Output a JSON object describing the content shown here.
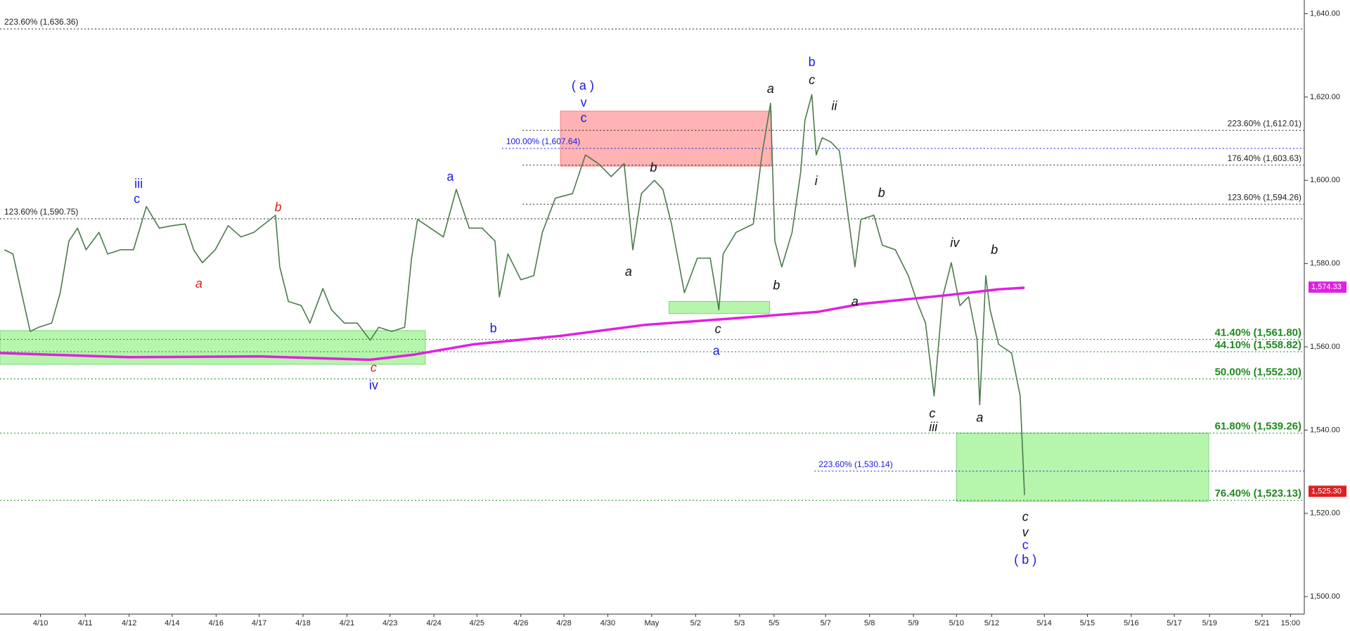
{
  "chart_data": {
    "type": "line",
    "xlim": [
      0,
      151.5
    ],
    "ylim": [
      1495.8,
      1643.3
    ],
    "yticks": [
      {
        "value": 1500,
        "label": "1,500.00"
      },
      {
        "value": 1520,
        "label": "1,520.00"
      },
      {
        "value": 1540,
        "label": "1,540.00"
      },
      {
        "value": 1560,
        "label": "1,560.00"
      },
      {
        "value": 1580,
        "label": "1,580.00"
      },
      {
        "value": 1600,
        "label": "1,600.00"
      },
      {
        "value": 1620,
        "label": "1,620.00"
      },
      {
        "value": 1640,
        "label": "1,640.00"
      }
    ],
    "xticks": [
      {
        "value": 4.7,
        "label": "4/10"
      },
      {
        "value": 9.9,
        "label": "4/11"
      },
      {
        "value": 15.0,
        "label": "4/12"
      },
      {
        "value": 20.0,
        "label": "4/14"
      },
      {
        "value": 25.1,
        "label": "4/16"
      },
      {
        "value": 30.1,
        "label": "4/17"
      },
      {
        "value": 35.2,
        "label": "4/18"
      },
      {
        "value": 40.3,
        "label": "4/21"
      },
      {
        "value": 45.3,
        "label": "4/23"
      },
      {
        "value": 50.4,
        "label": "4/24"
      },
      {
        "value": 55.4,
        "label": "4/25"
      },
      {
        "value": 60.5,
        "label": "4/26"
      },
      {
        "value": 65.5,
        "label": "4/28"
      },
      {
        "value": 70.6,
        "label": "4/30"
      },
      {
        "value": 75.7,
        "label": "May"
      },
      {
        "value": 80.8,
        "label": "5/2"
      },
      {
        "value": 85.9,
        "label": "5/3"
      },
      {
        "value": 89.9,
        "label": "5/5"
      },
      {
        "value": 95.9,
        "label": "5/7"
      },
      {
        "value": 101.0,
        "label": "5/8"
      },
      {
        "value": 106.1,
        "label": "5/9"
      },
      {
        "value": 111.1,
        "label": "5/10"
      },
      {
        "value": 115.2,
        "label": "5/12"
      },
      {
        "value": 121.3,
        "label": "5/14"
      },
      {
        "value": 126.3,
        "label": "5/15"
      },
      {
        "value": 131.4,
        "label": "5/16"
      },
      {
        "value": 136.4,
        "label": "5/17"
      },
      {
        "value": 140.5,
        "label": "5/19"
      },
      {
        "value": 146.6,
        "label": "5/21"
      },
      {
        "value": 149.9,
        "label": "15:00"
      }
    ],
    "series": [
      {
        "color": "#4d7a4d",
        "x": [
          0.5,
          1.5,
          2.5,
          3.5,
          4.5,
          6,
          7,
          8,
          9,
          10,
          11.5,
          12.5,
          14,
          15.5,
          17,
          18.5,
          20,
          21.5,
          22.5,
          23.5,
          25,
          26.5,
          28,
          29.5,
          32,
          32.5,
          33.5,
          35,
          36,
          37.5,
          38.5,
          40,
          41.5,
          43,
          44,
          45.5,
          47,
          47.8,
          48.5,
          50,
          51.5,
          53,
          54.5,
          56,
          57.5,
          58,
          59,
          60.5,
          62,
          63,
          64.5,
          66.5,
          68,
          69.5,
          71,
          72.5,
          73.5,
          74.5,
          76,
          77,
          78,
          79.5,
          81,
          82.5,
          83.5,
          84,
          85.5,
          87.5,
          88.5,
          89.5,
          90,
          90.8,
          92,
          93,
          93.5,
          94.3,
          94.8,
          95.5,
          96.5,
          97.5,
          98.5,
          99.3,
          100,
          101.5,
          102.5,
          104,
          105.5,
          106.5,
          107.5,
          108.5,
          109.5,
          110.5,
          111.5,
          112.5,
          113.5,
          113.8,
          114.5,
          115,
          116,
          117.5,
          118.5,
          119
        ],
        "values": [
          1583.3,
          1582.3,
          1573,
          1563.7,
          1564.7,
          1565.7,
          1573,
          1585.4,
          1588.5,
          1583.3,
          1587.5,
          1582.3,
          1583.3,
          1583.3,
          1593.7,
          1588.5,
          1589.1,
          1589.5,
          1583.3,
          1580.2,
          1583.3,
          1589.1,
          1586.4,
          1587.5,
          1591.6,
          1579.2,
          1570.9,
          1569.9,
          1565.7,
          1574,
          1568.9,
          1565.7,
          1565.7,
          1561.6,
          1564.7,
          1563.7,
          1564.7,
          1581.3,
          1590.6,
          1588.5,
          1586.4,
          1597.8,
          1588.5,
          1588.5,
          1585.4,
          1572,
          1582.3,
          1576.1,
          1577.1,
          1587.5,
          1595.7,
          1596.8,
          1606.1,
          1604,
          1600.9,
          1604,
          1583.3,
          1596.8,
          1600,
          1597.8,
          1589.5,
          1573,
          1581.3,
          1581.3,
          1568.9,
          1582.3,
          1587.5,
          1589.5,
          1606.1,
          1618.5,
          1585.4,
          1579.2,
          1587.5,
          1601.9,
          1614.4,
          1620.6,
          1606.1,
          1610.2,
          1609.2,
          1607.1,
          1591.6,
          1579.2,
          1590.6,
          1591.6,
          1584.4,
          1583.3,
          1577.1,
          1570.9,
          1565.7,
          1548.2,
          1572,
          1580.2,
          1569.9,
          1572,
          1561.6,
          1546.1,
          1577.1,
          1568.9,
          1560.6,
          1558.5,
          1548.2,
          1524.4
        ]
      },
      {
        "color": "#e020e0",
        "x": [
          0,
          15,
          30,
          43,
          48,
          55,
          65,
          75,
          85,
          95,
          100,
          110,
          116,
          119
        ],
        "values": [
          1558.5,
          1557.5,
          1557.7,
          1556.9,
          1558.1,
          1560.6,
          1562.6,
          1565.3,
          1566.8,
          1568.4,
          1570.3,
          1572.4,
          1573.8,
          1574.2
        ]
      }
    ],
    "zones": [
      {
        "x0": 65.1,
        "x1": 89.6,
        "y0": 1603.4,
        "y1": 1616.6,
        "color": "#ffb3b3",
        "stroke": "#f08080"
      },
      {
        "x0": 0,
        "x1": 49.4,
        "y0": 1555.8,
        "y1": 1563.9,
        "color": "#b6f5ac",
        "stroke": "#7fd47f"
      },
      {
        "x0": 77.7,
        "x1": 89.4,
        "y0": 1568,
        "y1": 1570.9,
        "color": "#b6f5ac",
        "stroke": "#7fd47f"
      },
      {
        "x0": 111.1,
        "x1": 140.4,
        "y0": 1522.9,
        "y1": 1539.3,
        "color": "#b6f5ac",
        "stroke": "#7fd47f"
      }
    ],
    "levels": [
      {
        "value": 1636.36,
        "label": "223.60% (1,636.36)",
        "x0": 0,
        "side": "left",
        "color": "#222",
        "bold": false
      },
      {
        "value": 1590.75,
        "label": "123.60% (1,590.75)",
        "x0": 0,
        "side": "left",
        "color": "#222",
        "bold": false
      },
      {
        "value": 1612.01,
        "label": "223.60% (1,612.01)",
        "x0": 60.7,
        "side": "right",
        "color": "#222",
        "bold": false
      },
      {
        "value": 1607.64,
        "label": "100.00% (1,607.64)",
        "x0": 58.3,
        "side": "left",
        "color": "#1a1ae6",
        "bold": false
      },
      {
        "value": 1603.63,
        "label": "176.40% (1,603.63)",
        "x0": 60.7,
        "side": "right",
        "color": "#222",
        "bold": false
      },
      {
        "value": 1594.26,
        "label": "123.60% (1,594.26)",
        "x0": 60.7,
        "side": "right",
        "color": "#222",
        "bold": false
      },
      {
        "value": 1561.8,
        "label": "41.40% (1,561.80)",
        "x0": 0,
        "side": "right",
        "color": "#1e8a1e",
        "bold": true
      },
      {
        "value": 1558.82,
        "label": "44.10% (1,558.82)",
        "x0": 0,
        "side": "right",
        "color": "#1e8a1e",
        "bold": true
      },
      {
        "value": 1552.3,
        "label": "50.00% (1,552.30)",
        "x0": 0,
        "side": "right",
        "color": "#1e8a1e",
        "bold": true
      },
      {
        "value": 1539.26,
        "label": "61.80% (1,539.26)",
        "x0": 0,
        "side": "right",
        "color": "#1e8a1e",
        "bold": true
      },
      {
        "value": 1530.14,
        "label": "223.60% (1,530.14)",
        "x0": 94.6,
        "side": "left",
        "color": "#1a1ae6",
        "bold": false
      },
      {
        "value": 1523.13,
        "label": "76.40% (1,523.13)",
        "x0": 0,
        "side": "right",
        "color": "#1e8a1e",
        "bold": true
      }
    ],
    "last_values": [
      {
        "value": 1574.33,
        "label": "1,574.33",
        "color": "#e020e0"
      },
      {
        "value": 1525.3,
        "label": "1,525.30",
        "color": "#e02020"
      }
    ],
    "annotations": [
      {
        "text": "iii",
        "x": 16.1,
        "y": 1599,
        "color": "#1a1ae6",
        "italic": false
      },
      {
        "text": "c",
        "x": 15.9,
        "y": 1595.4,
        "color": "#1a1ae6",
        "italic": false
      },
      {
        "text": "b",
        "x": 32.3,
        "y": 1593.3,
        "color": "#e02020",
        "italic": true
      },
      {
        "text": "a",
        "x": 23.1,
        "y": 1575,
        "color": "#e02020",
        "italic": true
      },
      {
        "text": "c",
        "x": 43.4,
        "y": 1554.8,
        "color": "#e02020",
        "italic": true
      },
      {
        "text": "iv",
        "x": 43.4,
        "y": 1550.6,
        "color": "#1a1ae6",
        "italic": false
      },
      {
        "text": "b",
        "x": 57.3,
        "y": 1564.3,
        "color": "#1a1ae6",
        "italic": false
      },
      {
        "text": "a",
        "x": 52.3,
        "y": 1600.7,
        "color": "#1a1ae6",
        "italic": false
      },
      {
        "text": "( a )",
        "x": 67.7,
        "y": 1622.6,
        "color": "#1a1ae6",
        "italic": false
      },
      {
        "text": "v",
        "x": 67.8,
        "y": 1618.5,
        "color": "#1a1ae6",
        "italic": false
      },
      {
        "text": "c",
        "x": 67.8,
        "y": 1614.8,
        "color": "#1a1ae6",
        "italic": false
      },
      {
        "text": "b",
        "x": 75.9,
        "y": 1602.9,
        "color": "#111",
        "italic": true
      },
      {
        "text": "a",
        "x": 73.0,
        "y": 1577.9,
        "color": "#111",
        "italic": true
      },
      {
        "text": "c",
        "x": 83.4,
        "y": 1564.1,
        "color": "#111",
        "italic": true
      },
      {
        "text": "a",
        "x": 83.2,
        "y": 1558.9,
        "color": "#1a1ae6",
        "italic": false
      },
      {
        "text": "a",
        "x": 89.5,
        "y": 1621.8,
        "color": "#111",
        "italic": true
      },
      {
        "text": "b",
        "x": 90.2,
        "y": 1574.6,
        "color": "#111",
        "italic": true
      },
      {
        "text": "b",
        "x": 94.3,
        "y": 1628.2,
        "color": "#1a1ae6",
        "italic": false
      },
      {
        "text": "c",
        "x": 94.3,
        "y": 1623.9,
        "color": "#111",
        "italic": true
      },
      {
        "text": "ii",
        "x": 96.9,
        "y": 1617.7,
        "color": "#111",
        "italic": true
      },
      {
        "text": "i",
        "x": 94.8,
        "y": 1599.7,
        "color": "#111",
        "italic": true
      },
      {
        "text": "b",
        "x": 102.4,
        "y": 1596.8,
        "color": "#111",
        "italic": true
      },
      {
        "text": "a",
        "x": 99.3,
        "y": 1570.7,
        "color": "#111",
        "italic": true
      },
      {
        "text": "iv",
        "x": 110.9,
        "y": 1584.8,
        "color": "#111",
        "italic": true
      },
      {
        "text": "b",
        "x": 115.5,
        "y": 1583.1,
        "color": "#111",
        "italic": true
      },
      {
        "text": "c",
        "x": 108.3,
        "y": 1543.8,
        "color": "#111",
        "italic": true
      },
      {
        "text": "iii",
        "x": 108.4,
        "y": 1540.5,
        "color": "#111",
        "italic": true
      },
      {
        "text": "a",
        "x": 113.8,
        "y": 1542.8,
        "color": "#111",
        "italic": true
      },
      {
        "text": "c",
        "x": 119.1,
        "y": 1519.0,
        "color": "#111",
        "italic": true
      },
      {
        "text": "v",
        "x": 119.1,
        "y": 1515.3,
        "color": "#111",
        "italic": true
      },
      {
        "text": "c",
        "x": 119.1,
        "y": 1512.2,
        "color": "#1a1ae6",
        "italic": false
      },
      {
        "text": "( b )",
        "x": 119.1,
        "y": 1508.7,
        "color": "#1a1ae6",
        "italic": false
      }
    ]
  }
}
